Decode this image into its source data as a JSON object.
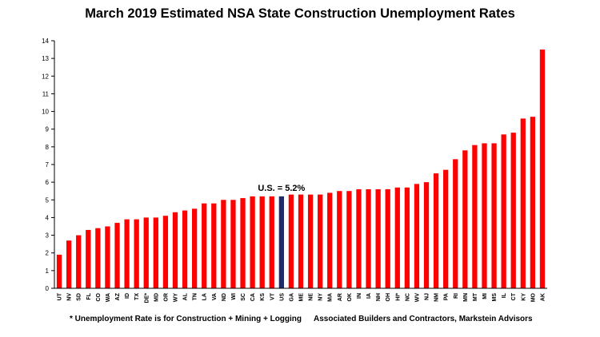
{
  "chart_data": {
    "type": "bar",
    "title": "March 2019 Estimated NSA State Construction Unemployment Rates",
    "categories": [
      "UT",
      "NV",
      "SD",
      "FL",
      "CO",
      "WA",
      "AZ",
      "ID",
      "TX",
      "DE*",
      "MD",
      "OR",
      "WY",
      "AL",
      "TN",
      "LA",
      "VA",
      "ND",
      "WI",
      "SC",
      "CA",
      "KS",
      "VT",
      "US",
      "GA",
      "ME",
      "NE",
      "NY",
      "MA",
      "AR",
      "OK",
      "IN",
      "IA",
      "NH",
      "OH",
      "HI*",
      "NC",
      "WV",
      "NJ",
      "NM",
      "PA",
      "RI",
      "MN",
      "MT",
      "MI",
      "MS",
      "IL",
      "CT",
      "KY",
      "MO",
      "AK"
    ],
    "values": [
      1.9,
      2.7,
      3.0,
      3.3,
      3.4,
      3.5,
      3.7,
      3.9,
      3.9,
      4.0,
      4.0,
      4.1,
      4.3,
      4.4,
      4.5,
      4.8,
      4.8,
      5.0,
      5.0,
      5.1,
      5.2,
      5.2,
      5.2,
      5.2,
      5.3,
      5.3,
      5.3,
      5.3,
      5.4,
      5.5,
      5.5,
      5.6,
      5.6,
      5.6,
      5.6,
      5.7,
      5.7,
      5.9,
      6.0,
      6.5,
      6.7,
      7.3,
      7.8,
      8.1,
      8.2,
      8.2,
      8.7,
      8.8,
      9.6,
      9.7,
      13.5
    ],
    "highlight_category": "US",
    "ylim": [
      0,
      14
    ],
    "yticks": [
      0,
      1,
      2,
      3,
      4,
      5,
      6,
      7,
      8,
      9,
      10,
      11,
      12,
      13,
      14
    ],
    "grid": false,
    "xlabel": "",
    "ylabel": "",
    "annotation": "U.S. = 5.2%"
  },
  "colors": {
    "bar": "#ff0000",
    "highlight_bar": "#1f2a6b",
    "axis": "#000000"
  },
  "footnote": "* Unemployment Rate is for Construction + Mining + Logging",
  "source": "Associated Builders and Contractors, Markstein Advisors"
}
